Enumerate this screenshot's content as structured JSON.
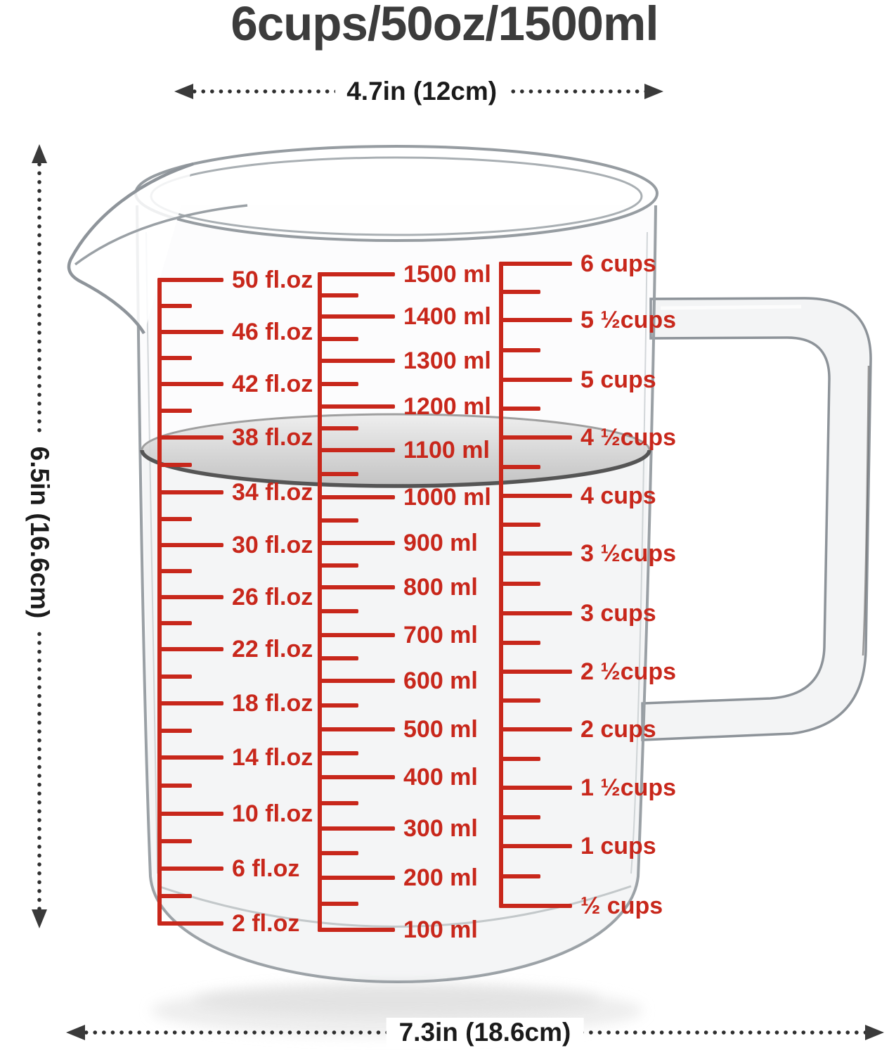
{
  "title": "6cups/50oz/1500ml",
  "dimensions": {
    "top_width": "4.7in (12cm)",
    "left_height": "6.5in (16.6cm)",
    "bottom_width": "7.3in (18.6cm)"
  },
  "scales": {
    "floz": {
      "unit": "fl.oz",
      "labels": [
        "50 fl.oz",
        "46 fl.oz",
        "42 fl.oz",
        "38 fl.oz",
        "34 fl.oz",
        "30 fl.oz",
        "26 fl.oz",
        "22 fl.oz",
        "18 fl.oz",
        "14 fl.oz",
        "10 fl.oz",
        "6 fl.oz",
        "2 fl.oz"
      ]
    },
    "ml": {
      "unit": "ml",
      "labels": [
        "1500 ml",
        "1400 ml",
        "1300 ml",
        "1200 ml",
        "1100 ml",
        "1000 ml",
        "900 ml",
        "800 ml",
        "700 ml",
        "600 ml",
        "500 ml",
        "400 ml",
        "300 ml",
        "200 ml",
        "100 ml"
      ]
    },
    "cups": {
      "unit": "cups",
      "labels": [
        "6 cups",
        "5 ½cups",
        "5 cups",
        "4 ½cups",
        "4 cups",
        "3 ½cups",
        "3 cups",
        "2 ½cups",
        "2 cups",
        "1 ½cups",
        "1 cups",
        "½ cups"
      ]
    }
  },
  "colors": {
    "scale_red": "#c8271b",
    "title_text": "#3c3c3c",
    "dimension_text": "#1b1b1b",
    "glass_outline": "#98a0a6",
    "water_surface": "#c6c6c6"
  }
}
